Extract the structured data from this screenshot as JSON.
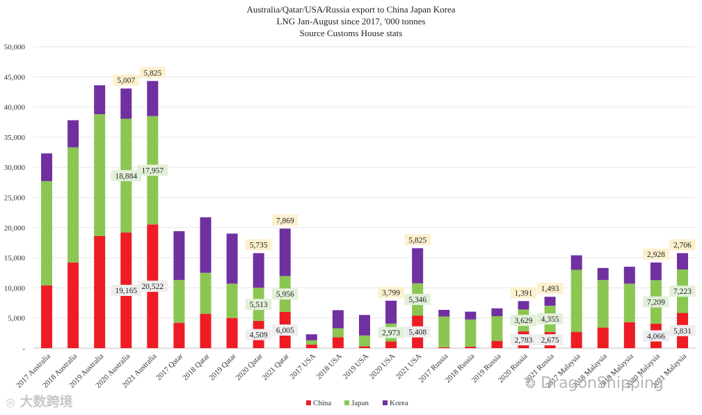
{
  "chart_data": {
    "type": "bar",
    "stacked": true,
    "title_lines": [
      "Australia/Qatar/USA/Russia export to China Japan Korea",
      "LNG Jan-August since 2017, '000 tonnes",
      "Source Customs House stats"
    ],
    "xlabel": "",
    "ylabel": "",
    "ylim": [
      0,
      50000
    ],
    "yticks": [
      0,
      5000,
      10000,
      15000,
      20000,
      25000,
      30000,
      35000,
      40000,
      45000,
      50000
    ],
    "ytick_labels": [
      "-",
      "5,000",
      "10,000",
      "15,000",
      "20,000",
      "25,000",
      "30,000",
      "35,000",
      "40,000",
      "45,000",
      "50,000"
    ],
    "grid": true,
    "legend_position": "bottom-center",
    "categories": [
      "2017 Australia",
      "2018 Australia",
      "2019 Australia",
      "2020 Australia",
      "2021 Australia",
      "2017 Qatar",
      "2018 Qatar",
      "2019 Qatar",
      "2020 Qatar",
      "2021 Qatar",
      "2017 USA",
      "2018 USA",
      "2019 USA",
      "2020 USA",
      "2021 USA",
      "2017 Russia",
      "2018 Russia",
      "2019 Russia",
      "2020 Russia",
      "2021 Russia",
      "2017 Malaysia",
      "2018 Malaysia",
      "2019 Malaysia",
      "2020 Malaysia",
      "2021 Malaysia"
    ],
    "series": [
      {
        "name": "China",
        "color": "#ee1c25",
        "values": [
          10400,
          14200,
          18600,
          19165,
          20522,
          4200,
          5700,
          5000,
          4509,
          6005,
          600,
          1800,
          300,
          1100,
          5408,
          150,
          250,
          1200,
          2783,
          2675,
          2700,
          3400,
          4300,
          4066,
          5831
        ]
      },
      {
        "name": "Japan",
        "color": "#8bc653",
        "values": [
          17300,
          19100,
          20200,
          18884,
          17957,
          7100,
          6800,
          5700,
          5513,
          5956,
          700,
          1500,
          1800,
          2973,
          5346,
          5100,
          4500,
          4100,
          3629,
          4355,
          10300,
          7900,
          6400,
          7209,
          7223
        ]
      },
      {
        "name": "Korea",
        "color": "#7030a0",
        "values": [
          4600,
          4500,
          4800,
          5007,
          5825,
          8100,
          9200,
          8300,
          5735,
          7869,
          1000,
          3000,
          3400,
          3799,
          5825,
          1100,
          1300,
          1300,
          1391,
          1493,
          2400,
          2000,
          2800,
          2928,
          2706
        ]
      }
    ],
    "data_labels": [
      {
        "series": "China",
        "category": "2020 Australia",
        "text": "19,165"
      },
      {
        "series": "China",
        "category": "2021 Australia",
        "text": "20,522"
      },
      {
        "series": "Japan",
        "category": "2020 Australia",
        "text": "18,884"
      },
      {
        "series": "Japan",
        "category": "2021 Australia",
        "text": "17,957"
      },
      {
        "series": "Korea",
        "category": "2020 Australia",
        "text": "5,007"
      },
      {
        "series": "Korea",
        "category": "2021 Australia",
        "text": "5,825"
      },
      {
        "series": "China",
        "category": "2020 Qatar",
        "text": "4,509"
      },
      {
        "series": "China",
        "category": "2021 Qatar",
        "text": "6,005"
      },
      {
        "series": "Japan",
        "category": "2020 Qatar",
        "text": "5,513"
      },
      {
        "series": "Japan",
        "category": "2021 Qatar",
        "text": "5,956"
      },
      {
        "series": "Korea",
        "category": "2020 Qatar",
        "text": "5,735"
      },
      {
        "series": "Korea",
        "category": "2021 Qatar",
        "text": "7,869"
      },
      {
        "series": "China",
        "category": "2021 USA",
        "text": "5,408"
      },
      {
        "series": "Japan",
        "category": "2020 USA",
        "text": "2,973"
      },
      {
        "series": "Japan",
        "category": "2021 USA",
        "text": "5,346"
      },
      {
        "series": "Korea",
        "category": "2020 USA",
        "text": "3,799"
      },
      {
        "series": "Korea",
        "category": "2021 USA",
        "text": "5,825"
      },
      {
        "series": "China",
        "category": "2020 Russia",
        "text": "2,783"
      },
      {
        "series": "China",
        "category": "2021 Russia",
        "text": "2,675"
      },
      {
        "series": "Japan",
        "category": "2020 Russia",
        "text": "3,629"
      },
      {
        "series": "Japan",
        "category": "2021 Russia",
        "text": "4,355"
      },
      {
        "series": "Korea",
        "category": "2020 Russia",
        "text": "1,391"
      },
      {
        "series": "Korea",
        "category": "2021 Russia",
        "text": "1,493"
      },
      {
        "series": "China",
        "category": "2020 Malaysia",
        "text": "4,066"
      },
      {
        "series": "China",
        "category": "2021 Malaysia",
        "text": "5,831"
      },
      {
        "series": "Japan",
        "category": "2020 Malaysia",
        "text": "7,209"
      },
      {
        "series": "Japan",
        "category": "2021 Malaysia",
        "text": "7,223"
      },
      {
        "series": "Korea",
        "category": "2020 Malaysia",
        "text": "2,928"
      },
      {
        "series": "Korea",
        "category": "2021 Malaysia",
        "text": "2,706"
      }
    ],
    "label_colors": {
      "China": "#eeeeee",
      "Japan": "#e3f0d9",
      "Korea": "#fdf0cf"
    },
    "grid_color": "#e6e6e6",
    "axis_color": "#bfbfbf"
  },
  "watermarks": {
    "left": "大数跨境",
    "right": "DragonShipping"
  }
}
